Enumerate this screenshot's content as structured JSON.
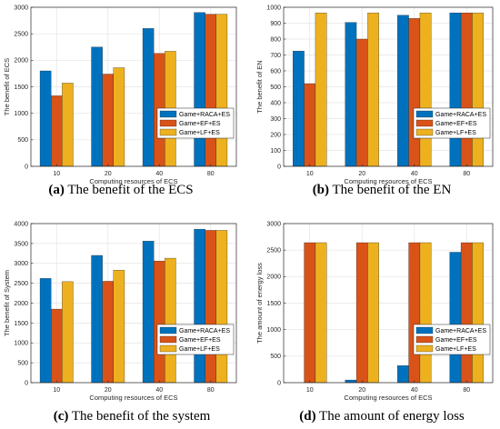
{
  "colors": {
    "s1": "#0072BD",
    "s2": "#D95319",
    "s3": "#EDB120"
  },
  "chart_data": [
    {
      "type": "bar",
      "caption": {
        "tag": "(a)",
        "text": " The benefit of the ECS"
      },
      "xlabel": "Computing resources of ECS",
      "ylabel": "The benefit of ECS",
      "categories": [
        "10",
        "20",
        "40",
        "80"
      ],
      "ylim": [
        0,
        3000
      ],
      "yticks": [
        "0",
        "500",
        "1000",
        "1500",
        "2000",
        "2500",
        "3000"
      ],
      "legend_position": "lower-right",
      "series": [
        {
          "name": "Game+RACA+ES",
          "values": [
            1800,
            2250,
            2600,
            2900
          ]
        },
        {
          "name": "Game+EF+ES",
          "values": [
            1330,
            1740,
            2130,
            2870
          ]
        },
        {
          "name": "Game+LF+ES",
          "values": [
            1570,
            1860,
            2170,
            2870
          ]
        }
      ]
    },
    {
      "type": "bar",
      "caption": {
        "tag": "(b)",
        "text": " The benefit of the EN"
      },
      "xlabel": "Computing resources of ECS",
      "ylabel": "The benefit of EN",
      "categories": [
        "10",
        "20",
        "40",
        "80"
      ],
      "ylim": [
        0,
        1000
      ],
      "yticks": [
        "0",
        "100",
        "200",
        "300",
        "400",
        "500",
        "600",
        "700",
        "800",
        "900",
        "1000"
      ],
      "legend_position": "lower-right",
      "series": [
        {
          "name": "Game+RACA+ES",
          "values": [
            725,
            905,
            950,
            965
          ]
        },
        {
          "name": "Game+EF+ES",
          "values": [
            520,
            800,
            930,
            965
          ]
        },
        {
          "name": "Game+LF+ES",
          "values": [
            965,
            965,
            965,
            965
          ]
        }
      ]
    },
    {
      "type": "bar",
      "caption": {
        "tag": "(c)",
        "text": " The benefit of the system"
      },
      "xlabel": "Computing resources of ECS",
      "ylabel": "The benefit of System",
      "categories": [
        "10",
        "20",
        "40",
        "80"
      ],
      "ylim": [
        0,
        4000
      ],
      "yticks": [
        "0",
        "500",
        "1000",
        "1500",
        "2000",
        "2500",
        "3000",
        "3500",
        "4000"
      ],
      "legend_position": "lower-right",
      "series": [
        {
          "name": "Game+RACA+ES",
          "values": [
            2620,
            3200,
            3560,
            3860
          ]
        },
        {
          "name": "Game+EF+ES",
          "values": [
            1850,
            2550,
            3060,
            3830
          ]
        },
        {
          "name": "Game+LF+ES",
          "values": [
            2540,
            2830,
            3130,
            3830
          ]
        }
      ]
    },
    {
      "type": "bar",
      "caption": {
        "tag": "(d)",
        "text": " The amount of energy loss"
      },
      "xlabel": "Computing resources of ECS",
      "ylabel": "The amount of energy loss",
      "categories": [
        "10",
        "20",
        "40",
        "80"
      ],
      "ylim": [
        0,
        3000
      ],
      "yticks": [
        "0",
        "500",
        "1000",
        "1500",
        "2000",
        "2500",
        "3000"
      ],
      "legend_position": "lower-right",
      "series": [
        {
          "name": "Game+RACA+ES",
          "values": [
            0,
            50,
            320,
            2460
          ]
        },
        {
          "name": "Game+EF+ES",
          "values": [
            2640,
            2640,
            2640,
            2640
          ]
        },
        {
          "name": "Game+LF+ES",
          "values": [
            2640,
            2640,
            2640,
            2640
          ]
        }
      ]
    }
  ]
}
